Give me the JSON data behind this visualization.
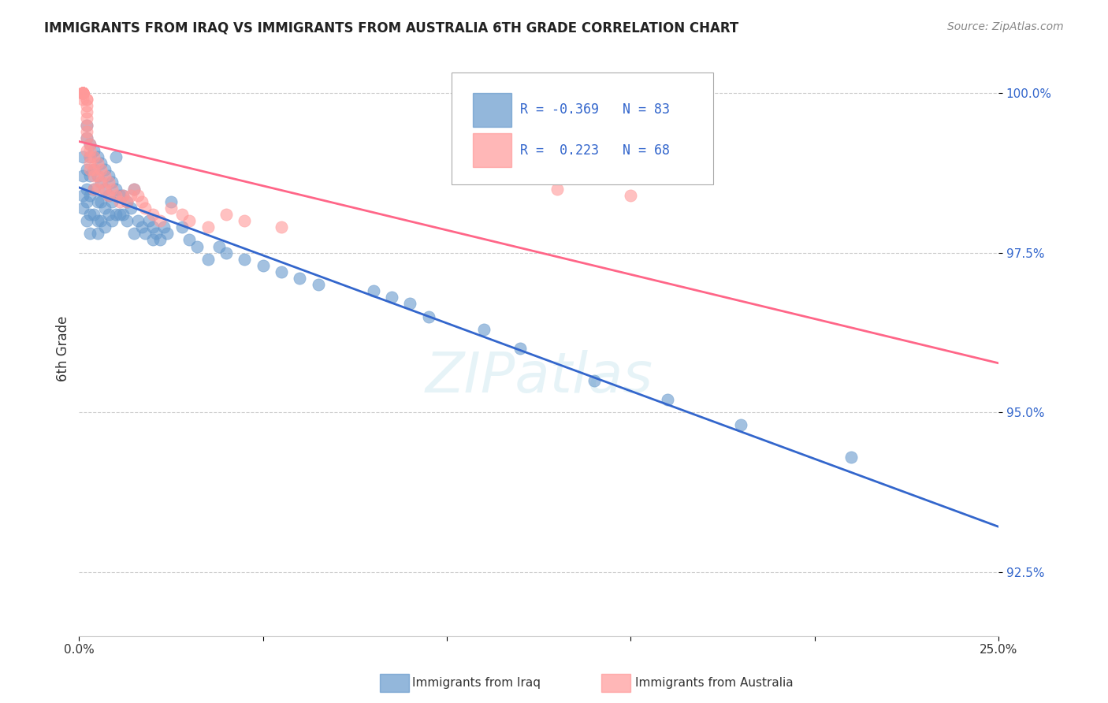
{
  "title": "IMMIGRANTS FROM IRAQ VS IMMIGRANTS FROM AUSTRALIA 6TH GRADE CORRELATION CHART",
  "source": "Source: ZipAtlas.com",
  "ylabel": "6th Grade",
  "xlim": [
    0.0,
    0.25
  ],
  "ylim": [
    0.915,
    1.005
  ],
  "yticks": [
    0.925,
    0.95,
    0.975,
    1.0
  ],
  "ytick_labels": [
    "92.5%",
    "95.0%",
    "97.5%",
    "100.0%"
  ],
  "xticks": [
    0.0,
    0.05,
    0.1,
    0.15,
    0.2,
    0.25
  ],
  "xtick_labels": [
    "0.0%",
    "",
    "",
    "",
    "",
    "25.0%"
  ],
  "iraq_R": -0.369,
  "iraq_N": 83,
  "australia_R": 0.223,
  "australia_N": 68,
  "iraq_color": "#6699CC",
  "australia_color": "#FF9999",
  "iraq_line_color": "#3366CC",
  "australia_line_color": "#FF6688",
  "watermark": "ZIPatlas",
  "iraq_x": [
    0.001,
    0.001,
    0.001,
    0.001,
    0.002,
    0.002,
    0.002,
    0.002,
    0.002,
    0.002,
    0.003,
    0.003,
    0.003,
    0.003,
    0.003,
    0.003,
    0.004,
    0.004,
    0.004,
    0.004,
    0.005,
    0.005,
    0.005,
    0.005,
    0.005,
    0.006,
    0.006,
    0.006,
    0.006,
    0.007,
    0.007,
    0.007,
    0.007,
    0.008,
    0.008,
    0.008,
    0.009,
    0.009,
    0.009,
    0.01,
    0.01,
    0.01,
    0.011,
    0.011,
    0.012,
    0.012,
    0.013,
    0.013,
    0.014,
    0.015,
    0.015,
    0.016,
    0.017,
    0.018,
    0.019,
    0.02,
    0.02,
    0.021,
    0.022,
    0.023,
    0.024,
    0.025,
    0.028,
    0.03,
    0.032,
    0.035,
    0.038,
    0.04,
    0.045,
    0.05,
    0.055,
    0.06,
    0.065,
    0.08,
    0.085,
    0.09,
    0.095,
    0.11,
    0.12,
    0.14,
    0.16,
    0.18,
    0.21
  ],
  "iraq_y": [
    0.99,
    0.987,
    0.984,
    0.982,
    0.995,
    0.993,
    0.988,
    0.985,
    0.983,
    0.98,
    0.992,
    0.99,
    0.987,
    0.984,
    0.981,
    0.978,
    0.991,
    0.988,
    0.985,
    0.981,
    0.99,
    0.987,
    0.983,
    0.98,
    0.978,
    0.989,
    0.986,
    0.983,
    0.98,
    0.988,
    0.985,
    0.982,
    0.979,
    0.987,
    0.984,
    0.981,
    0.986,
    0.983,
    0.98,
    0.99,
    0.985,
    0.981,
    0.984,
    0.981,
    0.984,
    0.981,
    0.983,
    0.98,
    0.982,
    0.985,
    0.978,
    0.98,
    0.979,
    0.978,
    0.98,
    0.979,
    0.977,
    0.978,
    0.977,
    0.979,
    0.978,
    0.983,
    0.979,
    0.977,
    0.976,
    0.974,
    0.976,
    0.975,
    0.974,
    0.973,
    0.972,
    0.971,
    0.97,
    0.969,
    0.968,
    0.967,
    0.965,
    0.963,
    0.96,
    0.955,
    0.952,
    0.948,
    0.943
  ],
  "australia_x": [
    0.001,
    0.001,
    0.001,
    0.001,
    0.001,
    0.001,
    0.001,
    0.001,
    0.001,
    0.001,
    0.001,
    0.001,
    0.001,
    0.001,
    0.001,
    0.001,
    0.001,
    0.001,
    0.001,
    0.001,
    0.002,
    0.002,
    0.002,
    0.002,
    0.002,
    0.002,
    0.002,
    0.002,
    0.002,
    0.003,
    0.003,
    0.003,
    0.003,
    0.003,
    0.004,
    0.004,
    0.004,
    0.004,
    0.005,
    0.005,
    0.005,
    0.006,
    0.006,
    0.007,
    0.007,
    0.008,
    0.008,
    0.009,
    0.01,
    0.011,
    0.012,
    0.013,
    0.014,
    0.015,
    0.016,
    0.017,
    0.018,
    0.02,
    0.022,
    0.025,
    0.028,
    0.03,
    0.035,
    0.04,
    0.045,
    0.055,
    0.13,
    0.15
  ],
  "australia_y": [
    1.0,
    1.0,
    1.0,
    1.0,
    1.0,
    1.0,
    1.0,
    1.0,
    1.0,
    1.0,
    1.0,
    1.0,
    1.0,
    1.0,
    1.0,
    1.0,
    1.0,
    1.0,
    1.0,
    0.999,
    0.999,
    0.999,
    0.998,
    0.997,
    0.996,
    0.995,
    0.994,
    0.993,
    0.991,
    0.992,
    0.991,
    0.99,
    0.989,
    0.988,
    0.99,
    0.988,
    0.987,
    0.985,
    0.989,
    0.987,
    0.985,
    0.988,
    0.986,
    0.987,
    0.985,
    0.986,
    0.984,
    0.985,
    0.984,
    0.983,
    0.984,
    0.983,
    0.984,
    0.985,
    0.984,
    0.983,
    0.982,
    0.981,
    0.98,
    0.982,
    0.981,
    0.98,
    0.979,
    0.981,
    0.98,
    0.979,
    0.985,
    0.984
  ]
}
